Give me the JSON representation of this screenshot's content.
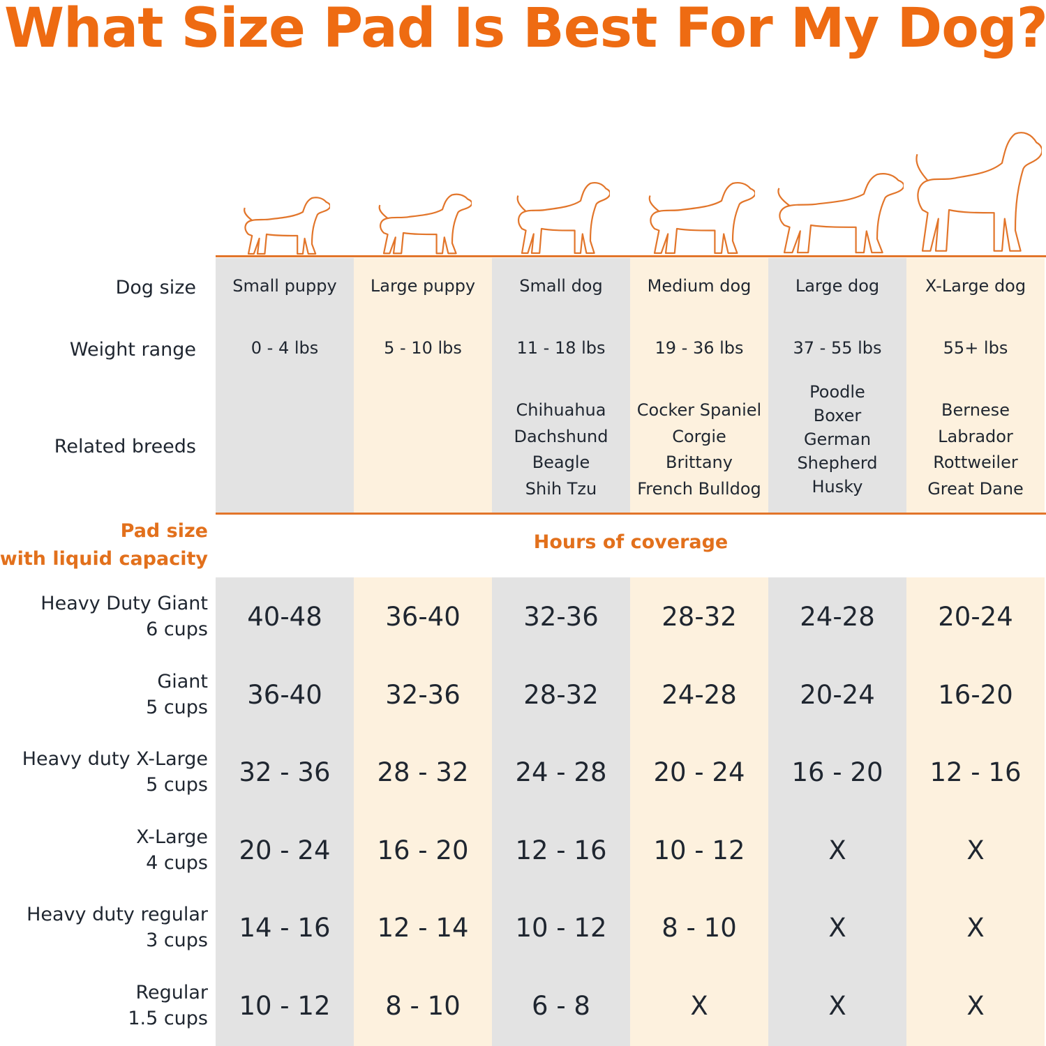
{
  "title": "What Size Pad Is Best For My Dog?",
  "colors": {
    "accent": "#ee6b12",
    "column_gray": "#e3e3e3",
    "column_cream": "#fdf1de"
  },
  "icons": [
    "small-puppy-icon",
    "large-puppy-icon",
    "small-dog-icon",
    "medium-dog-icon",
    "large-dog-icon",
    "x-large-dog-icon"
  ],
  "row_labels": {
    "dog_size": "Dog size",
    "weight_range": "Weight range",
    "related_breeds": "Related breeds"
  },
  "pad_header": {
    "line1": "Pad size",
    "line2": "with liquid capacity"
  },
  "coverage_header": "Hours of coverage",
  "columns": [
    {
      "size": "Small puppy",
      "weight": "0 - 4 lbs",
      "breeds": []
    },
    {
      "size": "Large puppy",
      "weight": "5 - 10 lbs",
      "breeds": []
    },
    {
      "size": "Small dog",
      "weight": "11 - 18 lbs",
      "breeds": [
        "Chihuahua",
        "Dachshund",
        "Beagle",
        "Shih Tzu"
      ]
    },
    {
      "size": "Medium dog",
      "weight": "19 - 36 lbs",
      "breeds": [
        "Cocker Spaniel",
        "Corgie",
        "Brittany",
        "French Bulldog"
      ]
    },
    {
      "size": "Large dog",
      "weight": "37 - 55 lbs",
      "breeds": [
        "Poodle",
        "Boxer",
        "German",
        "Shepherd",
        "Husky"
      ]
    },
    {
      "size": "X-Large dog",
      "weight": "55+ lbs",
      "breeds": [
        "Bernese",
        "Labrador",
        "Rottweiler",
        "Great Dane"
      ]
    }
  ],
  "pads": [
    {
      "name": "Heavy Duty Giant",
      "capacity": "6 cups",
      "hours": [
        "40-48",
        "36-40",
        "32-36",
        "28-32",
        "24-28",
        "20-24"
      ]
    },
    {
      "name": "Giant",
      "capacity": "5 cups",
      "hours": [
        "36-40",
        "32-36",
        "28-32",
        "24-28",
        "20-24",
        "16-20"
      ]
    },
    {
      "name": "Heavy duty X-Large",
      "capacity": "5 cups",
      "hours": [
        "32 - 36",
        "28 - 32",
        "24 - 28",
        "20 - 24",
        "16 - 20",
        "12 - 16"
      ]
    },
    {
      "name": "X-Large",
      "capacity": "4 cups",
      "hours": [
        "20 - 24",
        "16 - 20",
        "12 - 16",
        "10 - 12",
        "X",
        "X"
      ]
    },
    {
      "name": "Heavy duty regular",
      "capacity": "3 cups",
      "hours": [
        "14 - 16",
        "12 - 14",
        "10 - 12",
        "8 - 10",
        "X",
        "X"
      ]
    },
    {
      "name": "Regular",
      "capacity": "1.5 cups",
      "hours": [
        "10 - 12",
        "8 - 10",
        "6 - 8",
        "X",
        "X",
        "X"
      ]
    }
  ]
}
